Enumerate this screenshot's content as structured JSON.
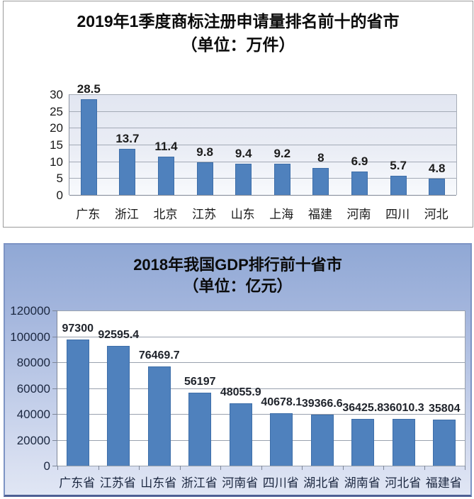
{
  "page": {
    "background_color": "#ffffff"
  },
  "chart_data": [
    {
      "id": "trademark-applications-2019q1",
      "type": "bar",
      "title": "2019年1季度商标注册申请量排名前十的省市",
      "subtitle": "（单位：万件）",
      "unit": "万件",
      "categories": [
        "广东",
        "浙江",
        "北京",
        "江苏",
        "山东",
        "上海",
        "福建",
        "河南",
        "四川",
        "河北"
      ],
      "values": [
        28.5,
        13.7,
        11.4,
        9.8,
        9.4,
        9.2,
        8,
        6.9,
        5.7,
        4.8
      ],
      "value_labels": [
        "28.5",
        "13.7",
        "11.4",
        "9.8",
        "9.4",
        "9.2",
        "8",
        "6.9",
        "5.7",
        "4.8"
      ],
      "ylim": [
        0,
        30
      ],
      "yticks": [
        0,
        5,
        10,
        15,
        20,
        25,
        30
      ],
      "ytick_labels": [
        "0",
        "5",
        "10",
        "15",
        "20",
        "25",
        "30"
      ],
      "grid": true,
      "legend": false,
      "bar_color": "#4f81bd",
      "bar_border_color": "#3d6ea9"
    },
    {
      "id": "gdp-2018-top10",
      "type": "bar",
      "title": "2018年我国GDP排行前十省市",
      "subtitle": "（单位：亿元）",
      "unit": "亿元",
      "categories": [
        "广东省",
        "江苏省",
        "山东省",
        "浙江省",
        "河南省",
        "四川省",
        "湖北省",
        "湖南省",
        "河北省",
        "福建省"
      ],
      "values": [
        97300,
        92595.4,
        76469.7,
        56197,
        48055.9,
        40678.1,
        39366.6,
        36425.8,
        36010.3,
        35804
      ],
      "value_labels": [
        "97300",
        "92595.4",
        "76469.7",
        "56197",
        "48055.9",
        "40678.1",
        "39366.6",
        "36425.8",
        "36010.3",
        "35804"
      ],
      "ylim": [
        0,
        120000
      ],
      "yticks": [
        0,
        20000,
        40000,
        60000,
        80000,
        100000,
        120000
      ],
      "ytick_labels": [
        "0",
        "20000",
        "40000",
        "60000",
        "80000",
        "100000",
        "120000"
      ],
      "grid": true,
      "legend": false,
      "bar_color": "#4f81bd",
      "bar_border_color": "#3d6ea9"
    }
  ]
}
